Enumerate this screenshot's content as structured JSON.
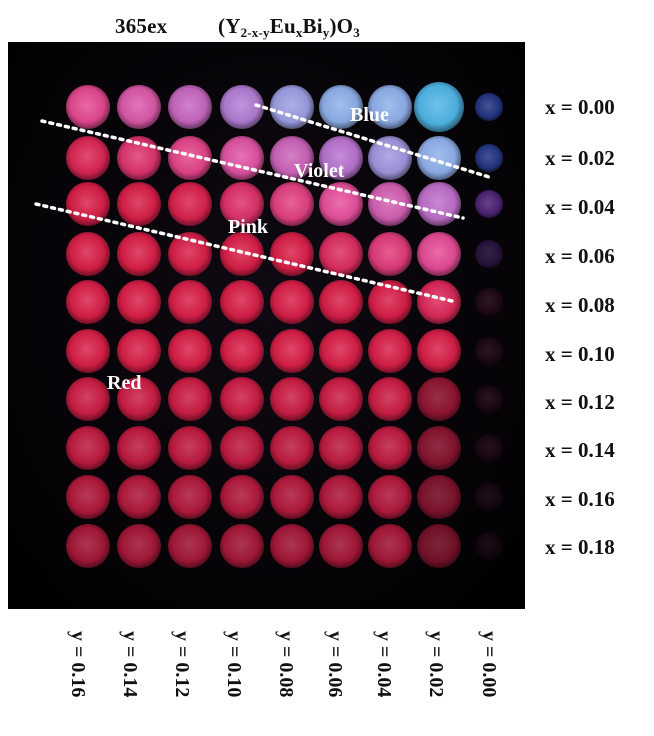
{
  "title": {
    "excitation": "365ex",
    "formula_parts": [
      "(Y",
      "2-x-y",
      "Eu",
      "x",
      "Bi",
      "y",
      ")O",
      "3"
    ]
  },
  "row_labels": [
    "x = 0.00",
    "x = 0.02",
    "x = 0.04",
    "x = 0.06",
    "x = 0.08",
    "x = 0.10",
    "x = 0.12",
    "x = 0.14",
    "x = 0.16",
    "x = 0.18"
  ],
  "column_labels": [
    "y = 0.16",
    "y = 0.14",
    "y = 0.12",
    "y = 0.10",
    "y = 0.08",
    "y = 0.06",
    "y = 0.04",
    "y = 0.02",
    "y = 0.00"
  ],
  "regions": {
    "blue": "Blue",
    "violet": "Violet",
    "pink": "Pink",
    "red": "Red"
  },
  "colors": {
    "background": "#ffffff",
    "photo_background": "#050306",
    "blue_glow": "#7fa8e8",
    "blue_bright": "#4fb6e6",
    "violet_glow": "#b066c8",
    "pink_glow": "#e0509a",
    "red_glow": "#d8204a",
    "dotted_line": "#ffffff"
  }
}
